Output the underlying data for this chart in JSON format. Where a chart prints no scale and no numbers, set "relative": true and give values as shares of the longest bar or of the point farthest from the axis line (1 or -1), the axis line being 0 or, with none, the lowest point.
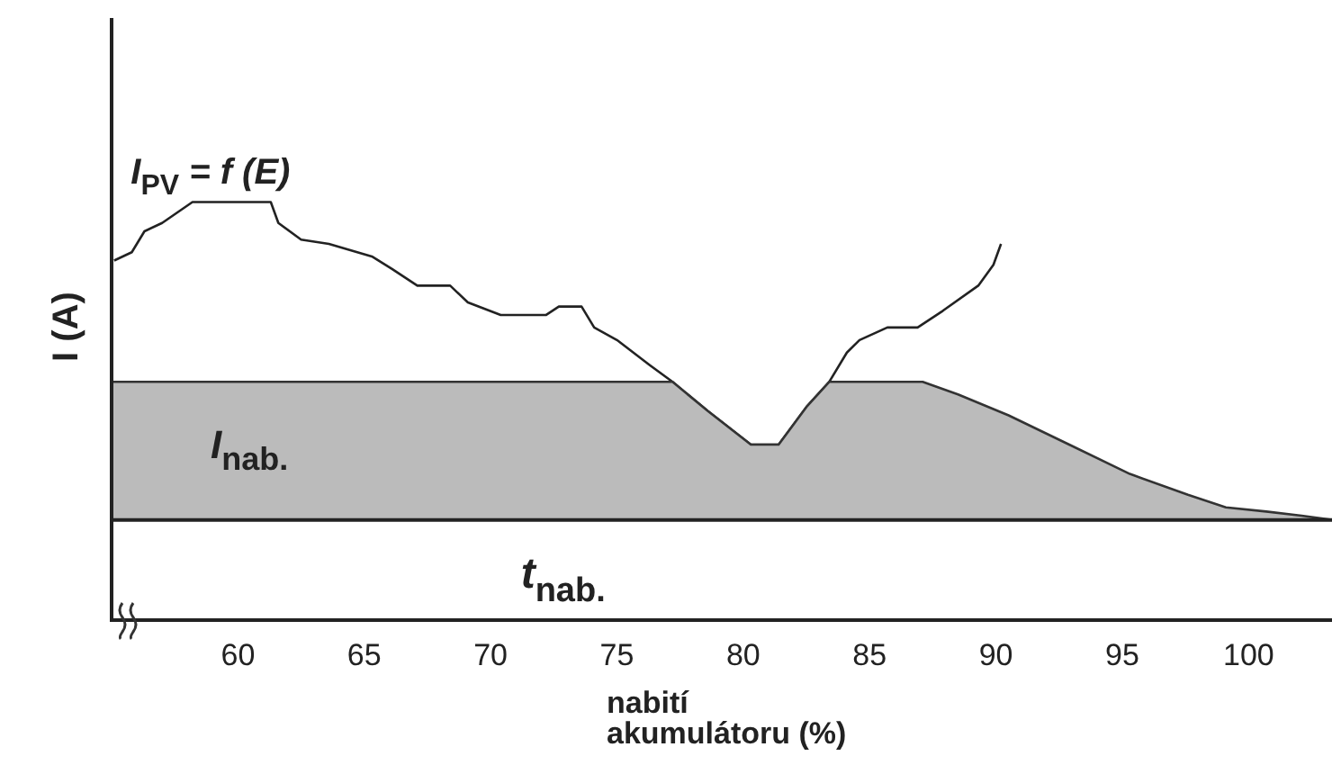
{
  "chart_data": {
    "type": "line",
    "relative": true,
    "xlabel": "nabití akumulátoru (%)",
    "ylabel": "I (A)",
    "xlim": [
      55,
      103.3
    ],
    "xticks": [
      60,
      65,
      70,
      75,
      80,
      85,
      90,
      95,
      100
    ],
    "grid": false,
    "legend": false,
    "marker": "none",
    "annotations": [
      "t$_{nab.}$"
    ],
    "ref_lines": [
      {
        "axis": "y",
        "value": 0.24,
        "color": "#222222"
      }
    ],
    "series": [
      {
        "name": "I$_{PV}$ = f (E)",
        "color": "#222222",
        "x": [
          55.1,
          55.8,
          56.3,
          57.0,
          58.2,
          61.3,
          61.6,
          62.5,
          63.6,
          65.3,
          66.1,
          67.1,
          68.4,
          69.1,
          70.4,
          72.2,
          72.7,
          73.6,
          74.1,
          75.0,
          76.3,
          77.2,
          78.6,
          80.3,
          81.4,
          82.5,
          83.4,
          84.1,
          84.6,
          85.7,
          86.9,
          87.9,
          89.3,
          89.9,
          90.2
        ],
        "values": [
          0.86,
          0.88,
          0.93,
          0.95,
          1,
          1,
          0.95,
          0.91,
          0.9,
          0.87,
          0.84,
          0.8,
          0.8,
          0.76,
          0.73,
          0.73,
          0.75,
          0.75,
          0.7,
          0.67,
          0.61,
          0.57,
          0.5,
          0.42,
          0.42,
          0.51,
          0.57,
          0.64,
          0.67,
          0.7,
          0.7,
          0.74,
          0.8,
          0.85,
          0.9
        ]
      },
      {
        "name": "I$_{nab.}$",
        "type": "area",
        "color": "#bbbbbb",
        "x": [
          55,
          77.2,
          78.6,
          80.3,
          81.4,
          82.5,
          83.4,
          87.1,
          88.5,
          90.5,
          92.9,
          95.3,
          97.6,
          99.1,
          100.7,
          102.1,
          103.3
        ],
        "values": [
          0.57,
          0.57,
          0.5,
          0.42,
          0.42,
          0.51,
          0.57,
          0.57,
          0.54,
          0.49,
          0.42,
          0.35,
          0.3,
          0.27,
          0.26,
          0.25,
          0.24
        ]
      }
    ]
  }
}
